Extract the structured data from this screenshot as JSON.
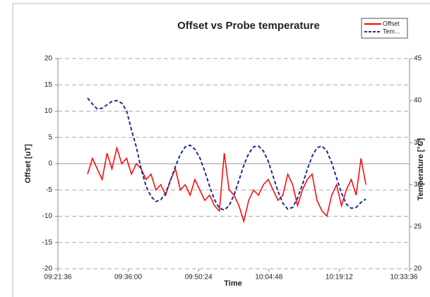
{
  "chart_data": {
    "type": "line",
    "title": "Offset vs Probe temperature",
    "xlabel": "Time",
    "ylabel": "Offset [uT]",
    "y2label": "Temperature [°C]",
    "x": [
      34060,
      34120,
      34180,
      34240,
      34300,
      34360,
      34420,
      34480,
      34540,
      34600,
      34660,
      34720,
      34780,
      34840,
      34900,
      34960,
      35020,
      35080,
      35140,
      35200,
      35260,
      35320,
      35380,
      35440,
      35500,
      35560,
      35620,
      35680,
      35740,
      35800,
      35860,
      35920,
      35980,
      36040,
      36100,
      36160,
      36220,
      36280,
      36340,
      36400,
      36460,
      36520,
      36580,
      36640,
      36700,
      36760,
      36820,
      36880,
      36940,
      37000,
      37060,
      37120,
      37180,
      37240,
      37300,
      37360,
      37420,
      37480
    ],
    "series": [
      {
        "name": "Offset",
        "color": "#ff0000",
        "values": [
          -2,
          1,
          -1,
          -3,
          2,
          -1,
          3,
          0,
          1,
          -2,
          0,
          -1,
          -3,
          -2,
          -5,
          -4,
          -6,
          -3,
          -1,
          -5,
          -4,
          -6,
          -3,
          -5,
          -7,
          -6,
          -8,
          -9,
          2,
          -5,
          -6,
          -8,
          -11,
          -7,
          -5,
          -6,
          -4,
          -3,
          -5,
          -7,
          -6,
          -2,
          -4,
          -8,
          -5,
          -3,
          -2,
          -7,
          -9,
          -10,
          -6,
          -4,
          -8,
          -5,
          -3,
          -6,
          1,
          -4
        ]
      },
      {
        "name": "Tem...",
        "color": "#1f2d8f",
        "axis": "y2",
        "dashed": true,
        "values": [
          40.3,
          39.6,
          39.0,
          39.1,
          39.5,
          39.9,
          40.0,
          39.7,
          38.8,
          36.5,
          34.5,
          31.8,
          29.8,
          28.6,
          28.0,
          28.2,
          29.0,
          30.5,
          32.2,
          33.6,
          34.5,
          34.7,
          34.2,
          33.2,
          31.6,
          29.8,
          28.2,
          27.2,
          27.0,
          27.5,
          28.8,
          30.5,
          32.3,
          33.7,
          34.5,
          34.6,
          34.0,
          32.8,
          31.0,
          29.2,
          27.8,
          27.1,
          27.3,
          28.4,
          30.0,
          31.8,
          33.4,
          34.4,
          34.6,
          34.0,
          32.6,
          30.8,
          29.0,
          27.7,
          27.2,
          27.3,
          27.9,
          28.3
        ]
      }
    ],
    "xlim": [
      33696,
      38016
    ],
    "xticks": [
      {
        "value": 33696,
        "label": "09:21:36"
      },
      {
        "value": 34560,
        "label": "09:36:00"
      },
      {
        "value": 35424,
        "label": "09:50:24"
      },
      {
        "value": 36288,
        "label": "10:04:48"
      },
      {
        "value": 37152,
        "label": "10:19:12"
      },
      {
        "value": 38016,
        "label": "10:33:36"
      }
    ],
    "ylim": [
      -20,
      20
    ],
    "yticks": [
      -20,
      -15,
      -10,
      -5,
      0,
      5,
      10,
      15,
      20
    ],
    "y2lim": [
      20,
      45
    ],
    "y2ticks": [
      20,
      25,
      30,
      35,
      40,
      45
    ],
    "grid": true,
    "legend": "top-right"
  }
}
